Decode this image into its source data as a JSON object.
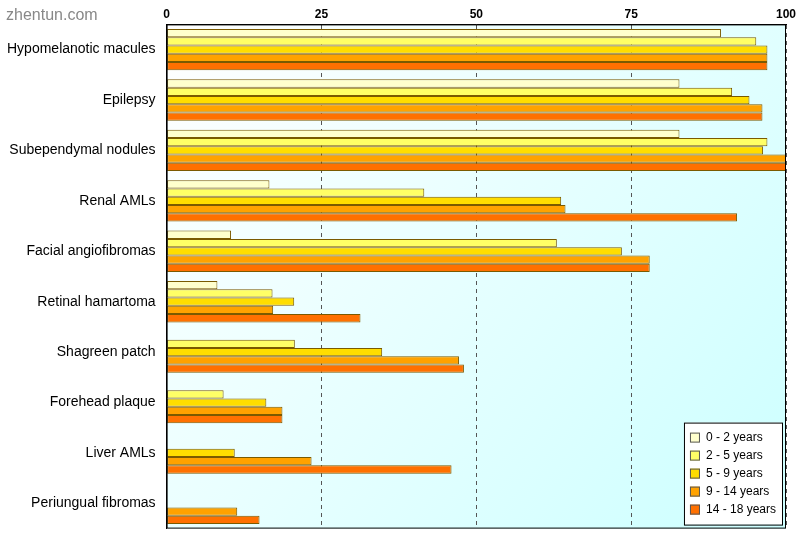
{
  "chart_data": {
    "type": "bar",
    "orientation": "horizontal",
    "annotations": [
      "zhentun.com"
    ],
    "categories": [
      "Hypomelanotic macules",
      "Epilepsy",
      "Subependymal nodules",
      "Renal AMLs",
      "Facial angiofibromas",
      "Retinal hamartoma",
      "Shagreen patch",
      "Forehead plaque",
      "Liver AMLs",
      "Periungual fibromas"
    ],
    "series": [
      {
        "name": "0 - 2 years",
        "color": "#ffffcc",
        "values": [
          89.5,
          82.8,
          82.8,
          16.6,
          10.4,
          8.2,
          0,
          0,
          0,
          0
        ]
      },
      {
        "name": "2 - 5 years",
        "color": "#ffff66",
        "values": [
          95.2,
          91.3,
          97,
          41.6,
          63,
          17.1,
          20.7,
          9.2,
          0,
          0
        ]
      },
      {
        "name": "5 - 9 years",
        "color": "#ffdd00",
        "values": [
          97,
          94.1,
          96.3,
          63.7,
          73.5,
          20.6,
          34.8,
          16.1,
          11,
          0
        ]
      },
      {
        "name": "9 - 14 years",
        "color": "#ffa200",
        "values": [
          97,
          96.2,
          100,
          64.4,
          78,
          17.2,
          47.2,
          18.7,
          23.4,
          11.4
        ]
      },
      {
        "name": "14 - 18 years",
        "color": "#ff7000",
        "values": [
          97,
          96.2,
          100,
          92.1,
          78,
          31.3,
          48,
          18.7,
          46,
          15
        ]
      }
    ],
    "xlim": [
      0,
      100
    ],
    "xticks": [
      0,
      25,
      50,
      75,
      100
    ],
    "grid": true,
    "legend": "lower right"
  }
}
